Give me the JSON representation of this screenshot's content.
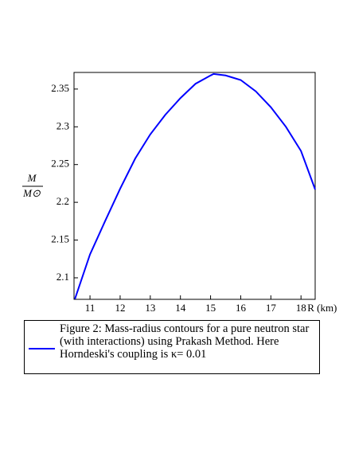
{
  "chart_data": {
    "type": "line",
    "x": [
      10.5,
      11,
      11.5,
      12,
      12.5,
      13,
      13.5,
      14,
      14.5,
      15,
      15.1,
      15.5,
      16,
      16.5,
      17,
      17.5,
      18,
      18.47
    ],
    "series": [
      {
        "name": "Figure 2: Mass-radius contours for a pure neutron star (with interactions) using Prakash Method. Here Horndeski's coupling is κ= 0.01",
        "color": "#0000ff",
        "values": [
          2.072,
          2.131,
          2.175,
          2.218,
          2.258,
          2.29,
          2.316,
          2.338,
          2.357,
          2.368,
          2.37,
          2.368,
          2.362,
          2.347,
          2.326,
          2.3,
          2.268,
          2.217
        ]
      }
    ],
    "xlim": [
      10.47,
      18.47
    ],
    "xticks": [
      11,
      12,
      13,
      14,
      15,
      16,
      17,
      18
    ],
    "ylim": [
      2.0715,
      2.372
    ],
    "yticks": [
      2.1,
      2.15,
      2.2,
      2.25,
      2.3,
      2.35
    ],
    "xlabel": "R (km)",
    "ylabel": {
      "numerator": "M",
      "denominator": "M⊙"
    }
  }
}
